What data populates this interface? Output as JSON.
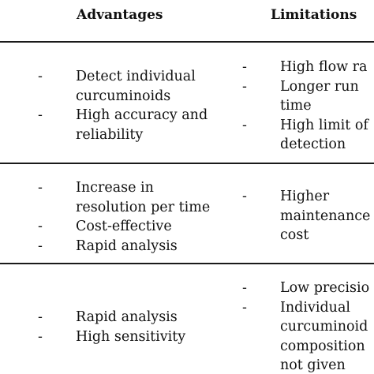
{
  "header": {
    "advantages": "Advantages",
    "limitations": "Limitations"
  },
  "bullet_char": "-",
  "rows": [
    {
      "advantages": [
        [
          "Detect individual",
          "curcuminoids"
        ],
        [
          "High accuracy and",
          "reliability"
        ]
      ],
      "limitations": [
        [
          "High flow ra"
        ],
        [
          "Longer run",
          "time"
        ],
        [
          "High limit of",
          "detection"
        ]
      ]
    },
    {
      "advantages": [
        [
          "Increase in",
          "resolution per time"
        ],
        [
          "Cost-effective"
        ],
        [
          "Rapid analysis"
        ]
      ],
      "limitations": [
        [
          "Higher",
          "maintenance",
          "cost"
        ]
      ]
    },
    {
      "advantages": [
        [
          "Rapid analysis"
        ],
        [
          "High sensitivity"
        ]
      ],
      "limitations": [
        [
          "Low precisio"
        ],
        [
          "Individual",
          "curcuminoid",
          "composition",
          "not given"
        ]
      ]
    }
  ]
}
